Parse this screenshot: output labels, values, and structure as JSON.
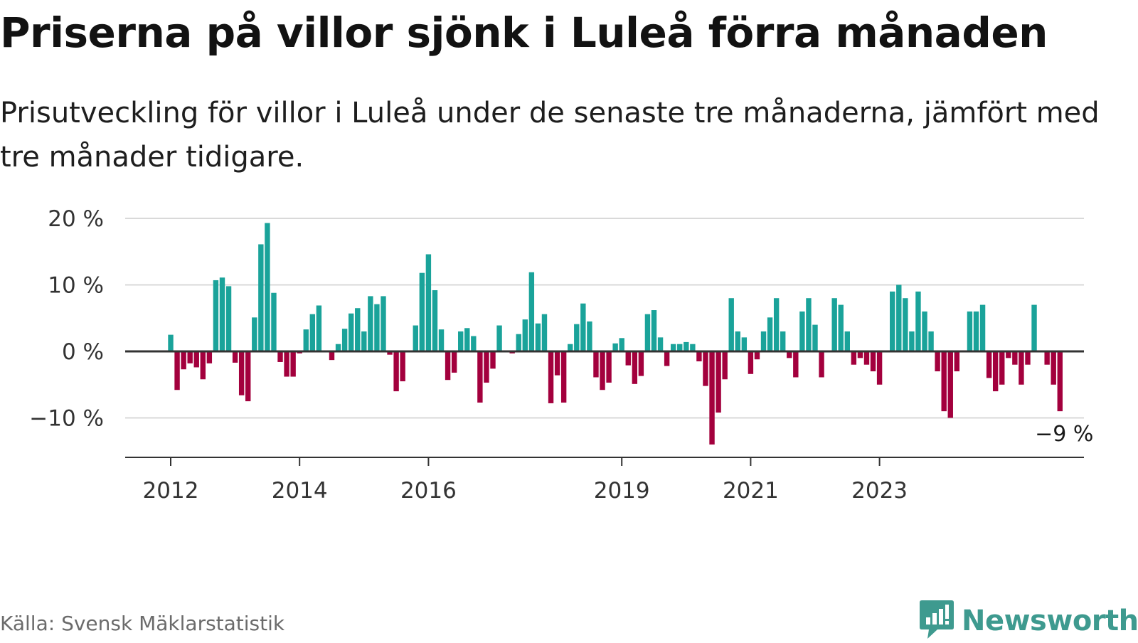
{
  "title": "Priserna på villor sjönk i Luleå förra månaden",
  "subtitle": "Prisutveckling för villor i Luleå under de senaste tre månaderna, jämfört med tre månader tidigare.",
  "source": "Källa: Svensk Mäklarstatistik",
  "brand": "Newsworthy",
  "colors": {
    "positive": "#1aa39a",
    "negative": "#a3003d",
    "grid": "#d9d9d9",
    "axis": "#333333",
    "brand": "#3e9a8f"
  },
  "chart_data": {
    "type": "bar",
    "ylim": [
      -16,
      20
    ],
    "yticks": [
      20,
      10,
      0,
      -10
    ],
    "ytick_labels": [
      "20 %",
      "10 %",
      "0 %",
      "−10 %"
    ],
    "xticks": [
      {
        "label": "2012",
        "index": 0
      },
      {
        "label": "2014",
        "index": 20
      },
      {
        "label": "2016",
        "index": 40
      },
      {
        "label": "2019",
        "index": 70
      },
      {
        "label": "2021",
        "index": 90
      },
      {
        "label": "2023",
        "index": 110
      }
    ],
    "last_label": "−9 %",
    "grid": true,
    "values": [
      2.5,
      -5.8,
      -2.7,
      -1.8,
      -2.4,
      -4.2,
      -1.8,
      10.7,
      11.1,
      9.8,
      -1.7,
      -6.6,
      -7.5,
      5.1,
      16.1,
      19.3,
      8.8,
      -1.6,
      -3.8,
      -3.8,
      -0.3,
      3.3,
      5.6,
      6.9,
      0,
      -1.3,
      1.1,
      3.4,
      5.7,
      6.5,
      3.0,
      8.3,
      7.1,
      8.3,
      -0.5,
      -6.0,
      -4.5,
      0,
      3.9,
      11.8,
      14.6,
      9.2,
      3.3,
      -4.3,
      -3.2,
      3.0,
      3.5,
      2.3,
      -7.7,
      -4.7,
      -2.6,
      3.9,
      0,
      -0.3,
      2.6,
      4.8,
      11.9,
      4.2,
      5.6,
      -7.8,
      -3.6,
      -7.7,
      1.1,
      4.1,
      7.2,
      4.5,
      -3.9,
      -5.8,
      -4.7,
      1.2,
      2.0,
      -2.1,
      -4.9,
      -3.7,
      5.6,
      6.2,
      2.1,
      -2.2,
      1.1,
      1.1,
      1.4,
      1.1,
      -1.5,
      -5.2,
      -14.0,
      -9.2,
      -4.2,
      8.0,
      3.0,
      2.1,
      -3.4,
      -1.2,
      3.0,
      5.1,
      8.0,
      3.0,
      -1.0,
      -3.9,
      6.0,
      8.0,
      4.0,
      -3.9,
      0,
      8.0,
      7.0,
      3.0,
      -2.0,
      -1.0,
      -2.0,
      -3.0,
      -5.0,
      0,
      9.0,
      10.0,
      8.0,
      3.0,
      9.0,
      6.0,
      3.0,
      -3.0,
      -9.0,
      -10.0,
      -3.0,
      0,
      6.0,
      6.0,
      7.0,
      -4.0,
      -6.0,
      -5.0,
      -1.0,
      -2.0,
      -5.0,
      -2.0,
      7.0,
      0,
      -2.0,
      -5.0,
      -9.0
    ]
  }
}
